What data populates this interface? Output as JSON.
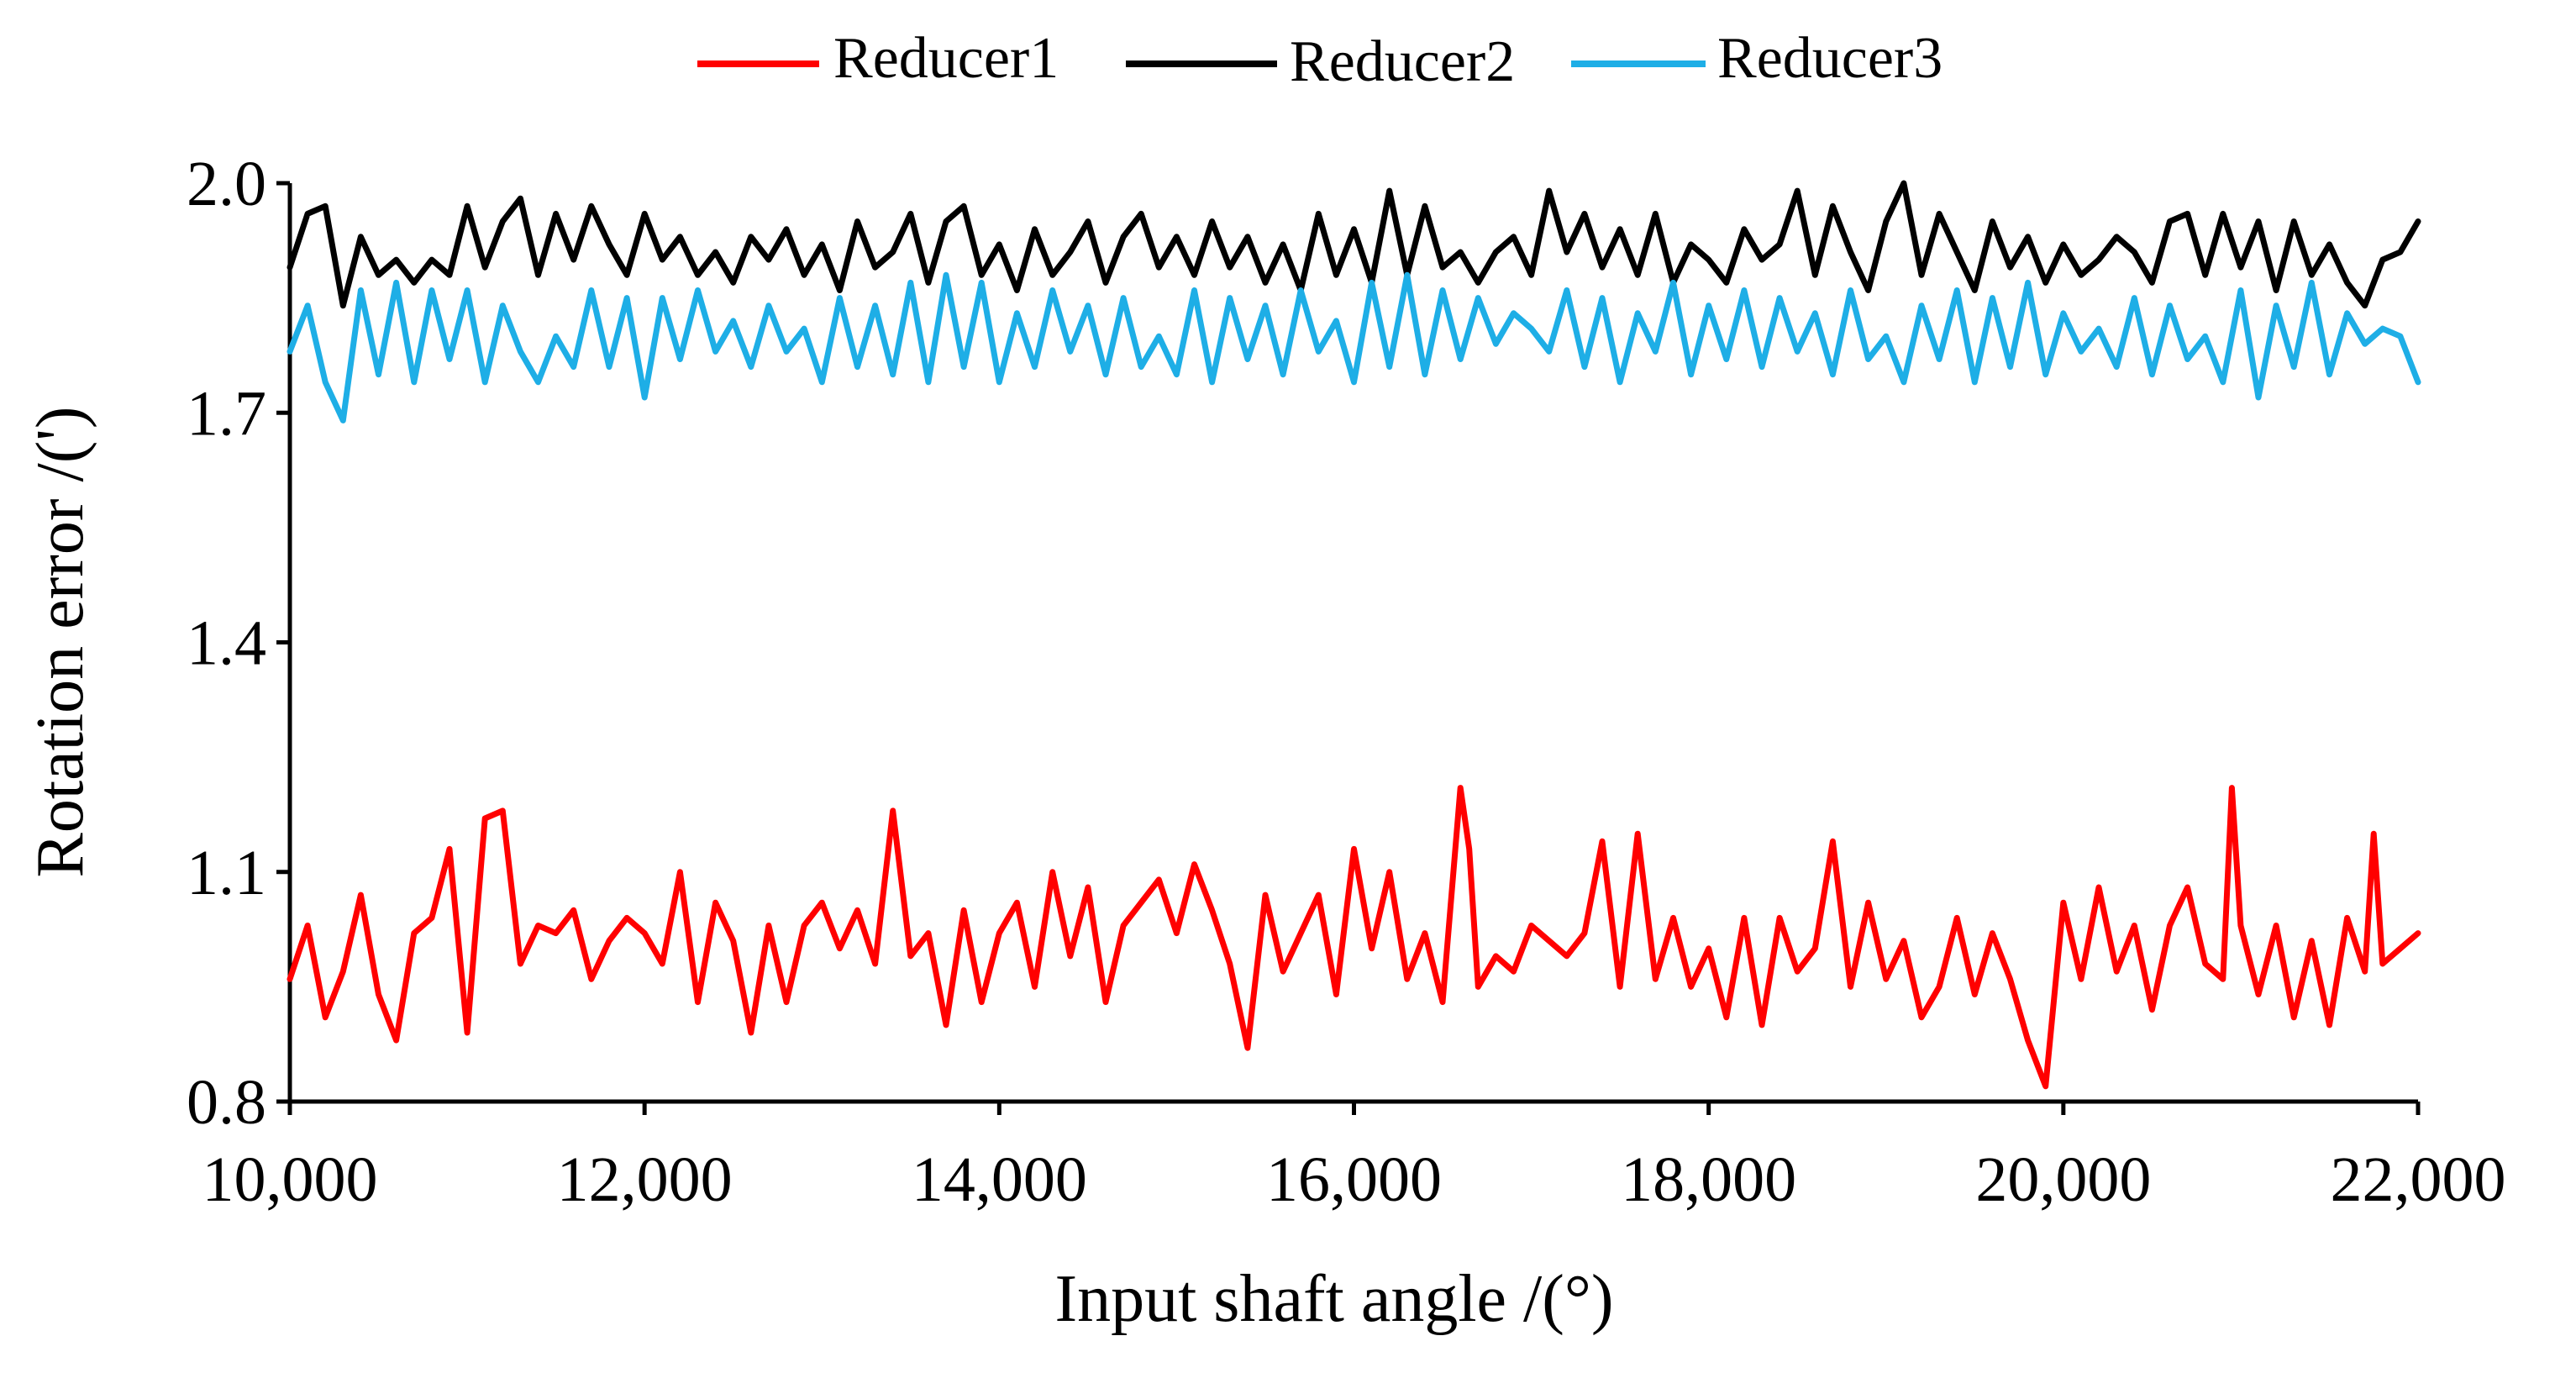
{
  "chart_data": {
    "type": "line",
    "title": "",
    "xlabel": "Input shaft angle /(°)",
    "ylabel": "Rotation error /(')",
    "xlim": [
      10000,
      22000
    ],
    "ylim": [
      0.8,
      2.0
    ],
    "x_ticks": [
      10000,
      12000,
      14000,
      16000,
      18000,
      20000,
      22000
    ],
    "x_tick_labels": [
      "10,000",
      "12,000",
      "14,000",
      "16,000",
      "18,000",
      "20,000",
      "22,000"
    ],
    "y_ticks": [
      0.8,
      1.1,
      1.4,
      1.7,
      2.0
    ],
    "y_tick_labels": [
      "0.8",
      "1.1",
      "1.4",
      "1.7",
      "2.0"
    ],
    "grid": false,
    "legend_position": "top-center",
    "series": [
      {
        "name": "Reducer1",
        "color": "#ff0000",
        "x": [
          10000,
          10100,
          10200,
          10300,
          10400,
          10500,
          10600,
          10700,
          10800,
          10900,
          11000,
          11100,
          11200,
          11300,
          11400,
          11500,
          11600,
          11700,
          11800,
          11900,
          12000,
          12100,
          12200,
          12300,
          12400,
          12500,
          12600,
          12700,
          12800,
          12900,
          13000,
          13100,
          13200,
          13300,
          13400,
          13500,
          13600,
          13700,
          13800,
          13900,
          14000,
          14100,
          14200,
          14300,
          14400,
          14500,
          14600,
          14700,
          14800,
          14900,
          15000,
          15100,
          15200,
          15300,
          15400,
          15500,
          15600,
          15700,
          15800,
          15900,
          16000,
          16100,
          16200,
          16300,
          16400,
          16500,
          16600,
          16650,
          16700,
          16800,
          16900,
          17000,
          17100,
          17200,
          17300,
          17400,
          17500,
          17600,
          17700,
          17800,
          17900,
          18000,
          18100,
          18200,
          18300,
          18400,
          18500,
          18600,
          18700,
          18800,
          18900,
          19000,
          19100,
          19200,
          19300,
          19400,
          19500,
          19600,
          19700,
          19800,
          19900,
          20000,
          20100,
          20200,
          20300,
          20400,
          20500,
          20600,
          20700,
          20800,
          20900,
          20950,
          21000,
          21100,
          21200,
          21300,
          21400,
          21500,
          21600,
          21700,
          21750,
          21800,
          21900,
          22000
        ],
        "values": [
          0.96,
          1.03,
          0.91,
          0.97,
          1.07,
          0.94,
          0.88,
          1.02,
          1.04,
          1.13,
          0.89,
          1.17,
          1.18,
          0.98,
          1.03,
          1.02,
          1.05,
          0.96,
          1.01,
          1.04,
          1.02,
          0.98,
          1.1,
          0.93,
          1.06,
          1.01,
          0.89,
          1.03,
          0.93,
          1.03,
          1.06,
          1.0,
          1.05,
          0.98,
          1.18,
          0.99,
          1.02,
          0.9,
          1.05,
          0.93,
          1.02,
          1.06,
          0.95,
          1.1,
          0.99,
          1.08,
          0.93,
          1.03,
          1.06,
          1.09,
          1.02,
          1.11,
          1.05,
          0.98,
          0.87,
          1.07,
          0.97,
          1.02,
          1.07,
          0.94,
          1.13,
          1.0,
          1.1,
          0.96,
          1.02,
          0.93,
          1.21,
          1.13,
          0.95,
          0.99,
          0.97,
          1.03,
          1.01,
          0.99,
          1.02,
          1.14,
          0.95,
          1.15,
          0.96,
          1.04,
          0.95,
          1.0,
          0.91,
          1.04,
          0.9,
          1.04,
          0.97,
          1.0,
          1.14,
          0.95,
          1.06,
          0.96,
          1.01,
          0.91,
          0.95,
          1.04,
          0.94,
          1.02,
          0.96,
          0.88,
          0.82,
          1.06,
          0.96,
          1.08,
          0.97,
          1.03,
          0.92,
          1.03,
          1.08,
          0.98,
          0.96,
          1.21,
          1.03,
          0.94,
          1.03,
          0.91,
          1.01,
          0.9,
          1.04,
          0.97,
          1.15,
          0.98,
          1.0,
          1.02
        ]
      },
      {
        "name": "Reducer2",
        "color": "#000000",
        "x": [
          10000,
          10100,
          10200,
          10300,
          10400,
          10500,
          10600,
          10700,
          10800,
          10900,
          11000,
          11100,
          11200,
          11300,
          11400,
          11500,
          11600,
          11700,
          11800,
          11900,
          12000,
          12100,
          12200,
          12300,
          12400,
          12500,
          12600,
          12700,
          12800,
          12900,
          13000,
          13100,
          13200,
          13300,
          13400,
          13500,
          13600,
          13700,
          13800,
          13900,
          14000,
          14100,
          14200,
          14300,
          14400,
          14500,
          14600,
          14700,
          14800,
          14900,
          15000,
          15100,
          15200,
          15300,
          15400,
          15500,
          15600,
          15700,
          15800,
          15900,
          16000,
          16100,
          16200,
          16300,
          16400,
          16500,
          16600,
          16700,
          16800,
          16900,
          17000,
          17100,
          17200,
          17300,
          17400,
          17500,
          17600,
          17700,
          17800,
          17900,
          18000,
          18100,
          18200,
          18300,
          18400,
          18500,
          18600,
          18700,
          18800,
          18900,
          19000,
          19100,
          19200,
          19300,
          19400,
          19500,
          19600,
          19700,
          19800,
          19900,
          20000,
          20100,
          20200,
          20300,
          20400,
          20500,
          20600,
          20700,
          20800,
          20900,
          21000,
          21100,
          21200,
          21300,
          21400,
          21500,
          21600,
          21700,
          21800,
          21900,
          22000
        ],
        "values": [
          1.89,
          1.96,
          1.97,
          1.84,
          1.93,
          1.88,
          1.9,
          1.87,
          1.9,
          1.88,
          1.97,
          1.89,
          1.95,
          1.98,
          1.88,
          1.96,
          1.9,
          1.97,
          1.92,
          1.88,
          1.96,
          1.9,
          1.93,
          1.88,
          1.91,
          1.87,
          1.93,
          1.9,
          1.94,
          1.88,
          1.92,
          1.86,
          1.95,
          1.89,
          1.91,
          1.96,
          1.87,
          1.95,
          1.97,
          1.88,
          1.92,
          1.86,
          1.94,
          1.88,
          1.91,
          1.95,
          1.87,
          1.93,
          1.96,
          1.89,
          1.93,
          1.88,
          1.95,
          1.89,
          1.93,
          1.87,
          1.92,
          1.86,
          1.96,
          1.88,
          1.94,
          1.87,
          1.99,
          1.88,
          1.97,
          1.89,
          1.91,
          1.87,
          1.91,
          1.93,
          1.88,
          1.99,
          1.91,
          1.96,
          1.89,
          1.94,
          1.88,
          1.96,
          1.87,
          1.92,
          1.9,
          1.87,
          1.94,
          1.9,
          1.92,
          1.99,
          1.88,
          1.97,
          1.91,
          1.86,
          1.95,
          2.0,
          1.88,
          1.96,
          1.91,
          1.86,
          1.95,
          1.89,
          1.93,
          1.87,
          1.92,
          1.88,
          1.9,
          1.93,
          1.91,
          1.87,
          1.95,
          1.96,
          1.88,
          1.96,
          1.89,
          1.95,
          1.86,
          1.95,
          1.88,
          1.92,
          1.87,
          1.84,
          1.9,
          1.91,
          1.95
        ]
      },
      {
        "name": "Reducer3",
        "color": "#1eaee6",
        "x": [
          10000,
          10100,
          10200,
          10300,
          10400,
          10500,
          10600,
          10700,
          10800,
          10900,
          11000,
          11100,
          11200,
          11300,
          11400,
          11500,
          11600,
          11700,
          11800,
          11900,
          12000,
          12100,
          12200,
          12300,
          12400,
          12500,
          12600,
          12700,
          12800,
          12900,
          13000,
          13100,
          13200,
          13300,
          13400,
          13500,
          13600,
          13700,
          13800,
          13900,
          14000,
          14100,
          14200,
          14300,
          14400,
          14500,
          14600,
          14700,
          14800,
          14900,
          15000,
          15100,
          15200,
          15300,
          15400,
          15500,
          15600,
          15700,
          15800,
          15900,
          16000,
          16100,
          16200,
          16300,
          16400,
          16500,
          16600,
          16700,
          16800,
          16900,
          17000,
          17100,
          17200,
          17300,
          17400,
          17500,
          17600,
          17700,
          17800,
          17900,
          18000,
          18100,
          18200,
          18300,
          18400,
          18500,
          18600,
          18700,
          18800,
          18900,
          19000,
          19100,
          19200,
          19300,
          19400,
          19500,
          19600,
          19700,
          19800,
          19900,
          20000,
          20100,
          20200,
          20300,
          20400,
          20500,
          20600,
          20700,
          20800,
          20900,
          21000,
          21100,
          21200,
          21300,
          21400,
          21500,
          21600,
          21700,
          21800,
          21900,
          22000
        ],
        "values": [
          1.78,
          1.84,
          1.74,
          1.69,
          1.86,
          1.75,
          1.87,
          1.74,
          1.86,
          1.77,
          1.86,
          1.74,
          1.84,
          1.78,
          1.74,
          1.8,
          1.76,
          1.86,
          1.76,
          1.85,
          1.72,
          1.85,
          1.77,
          1.86,
          1.78,
          1.82,
          1.76,
          1.84,
          1.78,
          1.81,
          1.74,
          1.85,
          1.76,
          1.84,
          1.75,
          1.87,
          1.74,
          1.88,
          1.76,
          1.87,
          1.74,
          1.83,
          1.76,
          1.86,
          1.78,
          1.84,
          1.75,
          1.85,
          1.76,
          1.8,
          1.75,
          1.86,
          1.74,
          1.85,
          1.77,
          1.84,
          1.75,
          1.86,
          1.78,
          1.82,
          1.74,
          1.87,
          1.76,
          1.88,
          1.75,
          1.86,
          1.77,
          1.85,
          1.79,
          1.83,
          1.81,
          1.78,
          1.86,
          1.76,
          1.85,
          1.74,
          1.83,
          1.78,
          1.87,
          1.75,
          1.84,
          1.77,
          1.86,
          1.76,
          1.85,
          1.78,
          1.83,
          1.75,
          1.86,
          1.77,
          1.8,
          1.74,
          1.84,
          1.77,
          1.86,
          1.74,
          1.85,
          1.76,
          1.87,
          1.75,
          1.83,
          1.78,
          1.81,
          1.76,
          1.85,
          1.75,
          1.84,
          1.77,
          1.8,
          1.74,
          1.86,
          1.72,
          1.84,
          1.76,
          1.87,
          1.75,
          1.83,
          1.79,
          1.81,
          1.8,
          1.74
        ]
      }
    ]
  }
}
